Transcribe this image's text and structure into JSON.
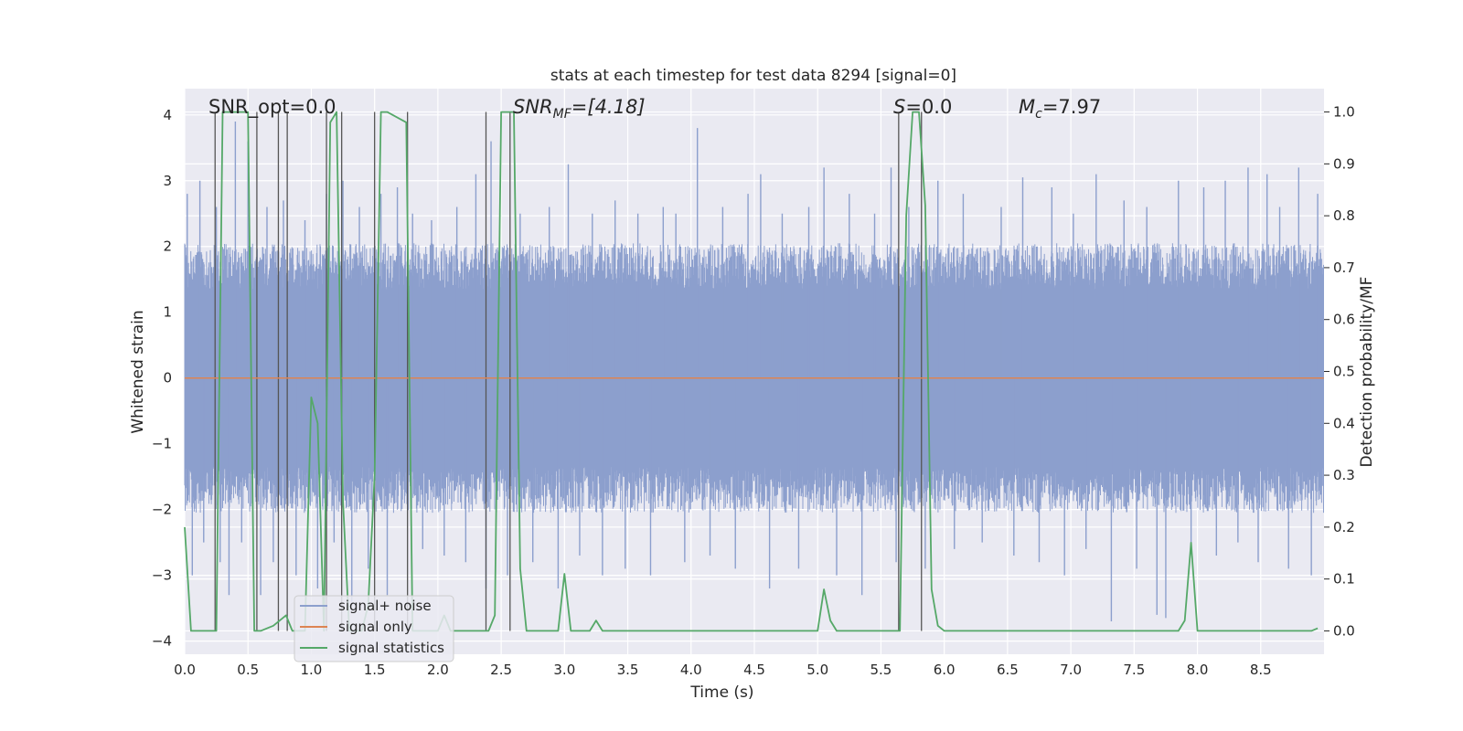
{
  "chart_data": {
    "type": "line",
    "title": "stats at each timestep for test data 8294 [signal=0]",
    "xlabel": "Time (s)",
    "ylabel": "Whitened strain",
    "y2label": "Detection probability/MF",
    "xlim": [
      0,
      9
    ],
    "ylim": [
      -4.2,
      4.4
    ],
    "y2lim": [
      -0.045,
      1.045
    ],
    "xticks": [
      0.0,
      0.5,
      1.0,
      1.5,
      2.0,
      2.5,
      3.0,
      3.5,
      4.0,
      4.5,
      5.0,
      5.5,
      6.0,
      6.5,
      7.0,
      7.5,
      8.0,
      8.5
    ],
    "yticks": [
      -4,
      -3,
      -2,
      -1,
      0,
      1,
      2,
      3,
      4
    ],
    "y2ticks": [
      0.0,
      0.1,
      0.2,
      0.3,
      0.4,
      0.5,
      0.6,
      0.7,
      0.8,
      0.9,
      1.0
    ],
    "grid": true,
    "legend_position": "lower-left",
    "annotations": {
      "snr_opt": "SNR_opt=0.0",
      "snr_mf_var": "SNR",
      "snr_mf_sub": "MF",
      "snr_mf_rest": "=[4.18]",
      "s_var": "S",
      "s_rest": "=0.0",
      "mc_var": "M",
      "mc_sub": "c",
      "mc_rest": "=7.97"
    },
    "series": [
      {
        "name": "signal+ noise",
        "axis": "left",
        "color": "#8c9fcd",
        "style": "noise band approx ±1.7 with spikes",
        "spikes": [
          [
            0.02,
            2.8
          ],
          [
            0.06,
            -3.0
          ],
          [
            0.12,
            3.0
          ],
          [
            0.15,
            -2.5
          ],
          [
            0.25,
            2.6
          ],
          [
            0.28,
            -2.8
          ],
          [
            0.35,
            -3.3
          ],
          [
            0.4,
            3.9
          ],
          [
            0.45,
            -2.5
          ],
          [
            0.5,
            3.6
          ],
          [
            0.6,
            -3.3
          ],
          [
            0.65,
            2.6
          ],
          [
            0.7,
            -2.8
          ],
          [
            0.78,
            2.7
          ],
          [
            0.88,
            -3.0
          ],
          [
            0.95,
            2.4
          ],
          [
            1.05,
            -3.2
          ],
          [
            1.12,
            2.8
          ],
          [
            1.18,
            -2.5
          ],
          [
            1.25,
            3.0
          ],
          [
            1.32,
            -3.4
          ],
          [
            1.38,
            2.6
          ],
          [
            1.45,
            -2.9
          ],
          [
            1.55,
            2.8
          ],
          [
            1.6,
            -3.3
          ],
          [
            1.68,
            2.9
          ],
          [
            1.8,
            2.5
          ],
          [
            1.88,
            -2.6
          ],
          [
            1.95,
            2.4
          ],
          [
            2.05,
            -2.7
          ],
          [
            2.15,
            2.6
          ],
          [
            2.22,
            -2.8
          ],
          [
            2.3,
            3.1
          ],
          [
            2.38,
            -3.2
          ],
          [
            2.42,
            3.6
          ],
          [
            2.55,
            -3.0
          ],
          [
            2.65,
            2.5
          ],
          [
            2.75,
            -2.8
          ],
          [
            2.88,
            2.6
          ],
          [
            2.95,
            -3.2
          ],
          [
            3.03,
            3.25
          ],
          [
            3.12,
            -2.7
          ],
          [
            3.22,
            2.5
          ],
          [
            3.3,
            -3.0
          ],
          [
            3.4,
            2.7
          ],
          [
            3.48,
            -2.9
          ],
          [
            3.58,
            2.5
          ],
          [
            3.68,
            -3.0
          ],
          [
            3.78,
            2.6
          ],
          [
            3.88,
            2.5
          ],
          [
            3.95,
            -2.8
          ],
          [
            4.05,
            3.8
          ],
          [
            4.15,
            -2.7
          ],
          [
            4.25,
            2.6
          ],
          [
            4.35,
            -2.9
          ],
          [
            4.45,
            2.8
          ],
          [
            4.55,
            3.1
          ],
          [
            4.62,
            -3.2
          ],
          [
            4.72,
            2.5
          ],
          [
            4.85,
            -2.9
          ],
          [
            4.93,
            2.6
          ],
          [
            5.05,
            3.2
          ],
          [
            5.15,
            -3.0
          ],
          [
            5.25,
            2.8
          ],
          [
            5.35,
            -3.3
          ],
          [
            5.45,
            2.5
          ],
          [
            5.58,
            3.2
          ],
          [
            5.62,
            -2.8
          ],
          [
            5.72,
            2.6
          ],
          [
            5.85,
            -2.9
          ],
          [
            5.95,
            3.0
          ],
          [
            6.08,
            -2.6
          ],
          [
            6.15,
            2.8
          ],
          [
            6.3,
            -2.5
          ],
          [
            6.45,
            2.6
          ],
          [
            6.55,
            -2.7
          ],
          [
            6.62,
            3.05
          ],
          [
            6.75,
            -2.8
          ],
          [
            6.85,
            2.9
          ],
          [
            6.95,
            -3.0
          ],
          [
            7.02,
            2.5
          ],
          [
            7.12,
            -2.6
          ],
          [
            7.2,
            3.1
          ],
          [
            7.32,
            -3.7
          ],
          [
            7.42,
            2.7
          ],
          [
            7.52,
            -2.9
          ],
          [
            7.6,
            2.6
          ],
          [
            7.68,
            -3.6
          ],
          [
            7.75,
            -3.65
          ],
          [
            7.85,
            3.0
          ],
          [
            7.95,
            -2.6
          ],
          [
            8.05,
            2.9
          ],
          [
            8.15,
            -2.7
          ],
          [
            8.22,
            3.0
          ],
          [
            8.32,
            -2.5
          ],
          [
            8.4,
            3.2
          ],
          [
            8.48,
            -2.8
          ],
          [
            8.55,
            3.1
          ],
          [
            8.65,
            2.6
          ],
          [
            8.72,
            -2.9
          ],
          [
            8.8,
            3.2
          ],
          [
            8.9,
            -3.0
          ],
          [
            8.95,
            2.8
          ]
        ]
      },
      {
        "name": "signal only",
        "axis": "left",
        "color": "#dd8452",
        "x": [
          0,
          9
        ],
        "y": [
          0,
          0
        ]
      },
      {
        "name": "signal statistics",
        "axis": "right",
        "color": "#55a868",
        "x": [
          0.0,
          0.05,
          0.2,
          0.25,
          0.3,
          0.5,
          0.55,
          0.6,
          0.7,
          0.8,
          0.85,
          0.95,
          1.0,
          1.05,
          1.1,
          1.15,
          1.2,
          1.25,
          1.3,
          1.35,
          1.4,
          1.45,
          1.5,
          1.55,
          1.6,
          1.75,
          1.8,
          1.85,
          1.9,
          1.95,
          2.0,
          2.05,
          2.1,
          2.15,
          2.2,
          2.3,
          2.35,
          2.4,
          2.45,
          2.5,
          2.6,
          2.65,
          2.7,
          2.75,
          2.8,
          2.85,
          2.9,
          2.95,
          3.0,
          3.05,
          3.1,
          3.2,
          3.25,
          3.3,
          3.35,
          3.4,
          4.0,
          4.5,
          4.95,
          5.0,
          5.05,
          5.1,
          5.15,
          5.2,
          5.25,
          5.6,
          5.65,
          5.7,
          5.75,
          5.8,
          5.85,
          5.9,
          5.95,
          6.0,
          6.05,
          6.1,
          7.8,
          7.85,
          7.9,
          7.95,
          8.0,
          8.05,
          8.3,
          8.35,
          8.5,
          8.8,
          8.9,
          8.95
        ],
        "y": [
          0.2,
          0.0,
          0.0,
          0.0,
          1.0,
          1.0,
          0.0,
          0.0,
          0.01,
          0.03,
          0.0,
          0.0,
          0.45,
          0.4,
          0.0,
          0.98,
          1.0,
          0.25,
          0.0,
          0.0,
          0.0,
          0.05,
          0.3,
          1.0,
          1.0,
          0.98,
          0.0,
          0.0,
          0.0,
          0.0,
          0.0,
          0.03,
          0.0,
          0.0,
          0.0,
          0.0,
          0.0,
          0.0,
          0.03,
          1.0,
          1.0,
          0.12,
          0.0,
          0.0,
          0.0,
          0.0,
          0.0,
          0.0,
          0.11,
          0.0,
          0.0,
          0.0,
          0.02,
          0.0,
          0.0,
          0.0,
          0.0,
          0.0,
          0.0,
          0.0,
          0.08,
          0.02,
          0.0,
          0.0,
          0.0,
          0.0,
          0.0,
          0.8,
          1.0,
          1.0,
          0.82,
          0.08,
          0.01,
          0.0,
          0.0,
          0.0,
          0.0,
          0.0,
          0.02,
          0.17,
          0.0,
          0.0,
          0.0,
          0.0,
          0.0,
          0.0,
          0.0,
          0.005
        ]
      }
    ],
    "vlines": {
      "color": "#555555",
      "x": [
        0.24,
        0.57,
        0.74,
        0.81,
        1.12,
        1.24,
        1.5,
        1.76,
        2.38,
        2.57,
        5.64,
        5.82
      ]
    }
  }
}
